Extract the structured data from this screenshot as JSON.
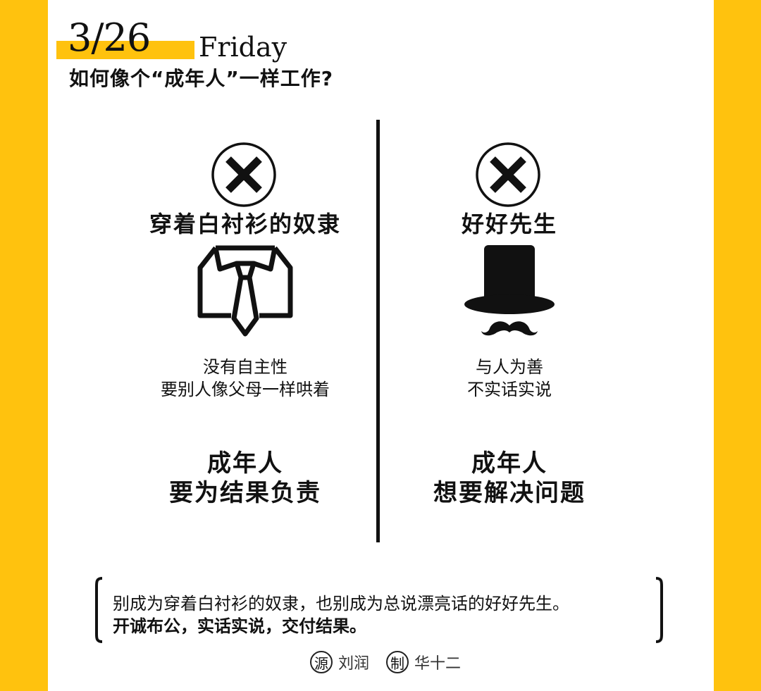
{
  "header": {
    "date": "3/26",
    "weekday": "Friday",
    "headline": "如何像个“成年人”一样工作?"
  },
  "columns": [
    {
      "icon": "cross-circle-icon",
      "title": "穿着白衬衫的奴隶",
      "illustration": "shirt-tie-icon",
      "description": [
        "没有自主性",
        "要别人像父母一样哄着"
      ],
      "conclusion": [
        "成年人",
        "要为结果负责"
      ]
    },
    {
      "icon": "cross-circle-icon",
      "title": "好好先生",
      "illustration": "top-hat-mustache-icon",
      "description": [
        "与人为善",
        "不实话实说"
      ],
      "conclusion": [
        "成年人",
        "想要解决问题"
      ]
    }
  ],
  "quote": {
    "line1": "别成为穿着白衬衫的奴隶，也别成为总说漂亮话的好好先生。",
    "line2": "开诚布公，实话实说，交付结果。"
  },
  "credits": {
    "source_badge": "源",
    "source_name": "刘润",
    "maker_badge": "制",
    "maker_name": "华十二"
  },
  "colors": {
    "accent": "#FFC20E",
    "ink": "#111111",
    "paper": "#FFFFFF"
  }
}
